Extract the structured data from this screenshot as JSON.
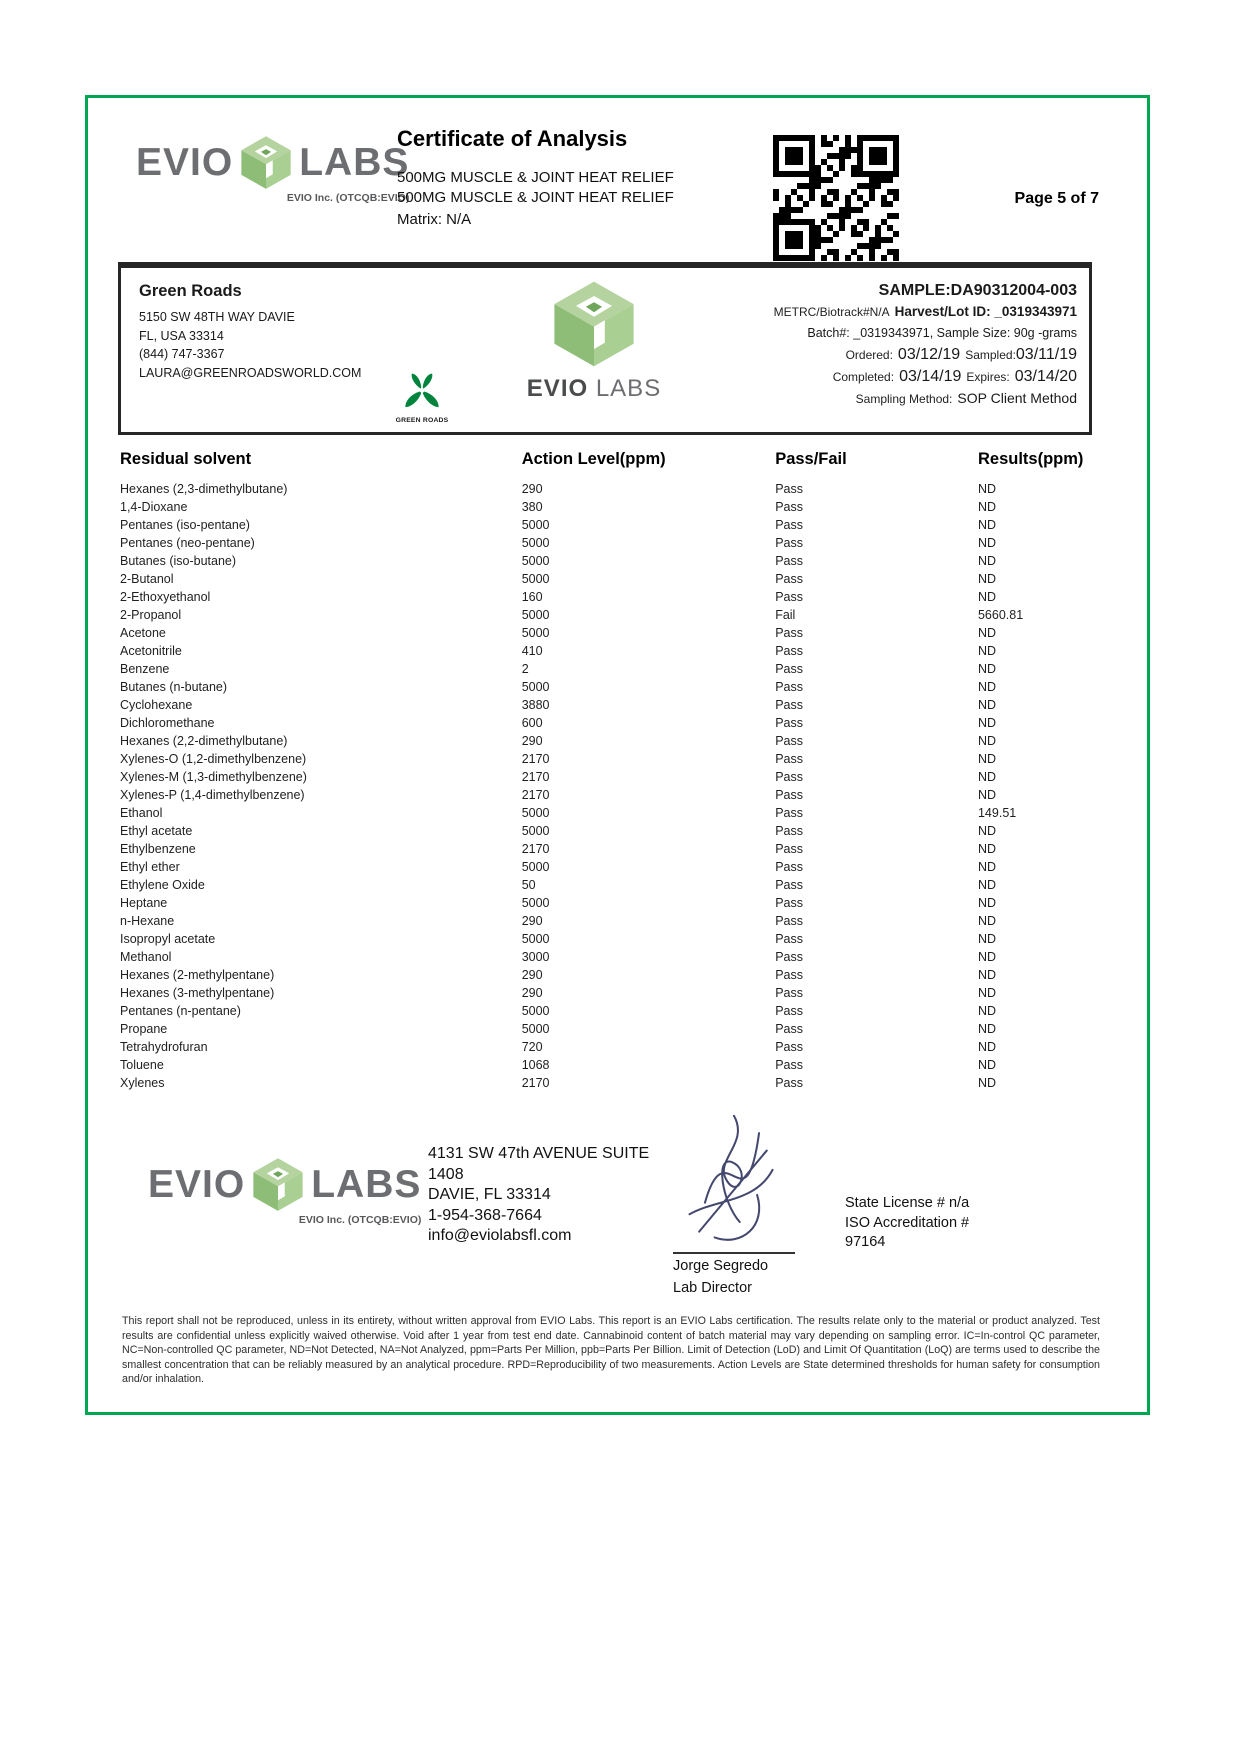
{
  "brand": {
    "evio": "EVIO",
    "labs": "LABS",
    "subtitle": "EVIO Inc. (OTCQB:EVIO)"
  },
  "header": {
    "title": "Certificate of Analysis",
    "product_line1": "500MG MUSCLE & JOINT HEAT RELIEF",
    "product_line2": "500MG MUSCLE & JOINT HEAT RELIEF",
    "matrix": "Matrix: N/A",
    "page_label": "Page 5 of 7"
  },
  "client": {
    "name": "Green Roads",
    "address1": "5150 SW 48TH WAY DAVIE",
    "address2": "FL, USA 33314",
    "phone": "(844) 747-3367",
    "email": "LAURA@GREENROADSWORLD.COM",
    "brand_label": "GREEN ROADS"
  },
  "center_logo": {
    "evio": "EVIO",
    "labs": "LABS"
  },
  "sample": {
    "id_label": "SAMPLE:",
    "id": "DA90312004-003",
    "metrc": "METRC/Biotrack#N/A",
    "harvest": "Harvest/Lot ID: _0319343971",
    "batch": "Batch#: _0319343971, Sample Size: 90g -grams",
    "ordered_label": "Ordered:",
    "ordered_date": "03/12/19",
    "sampled_label": "Sampled:",
    "sampled_date": "03/11/19",
    "completed_label": "Completed:",
    "completed_date": "03/14/19",
    "expires_label": "Expires:",
    "expires_date": "03/14/20",
    "method_label": "Sampling Method:",
    "method": "SOP Client Method"
  },
  "table": {
    "headers": [
      "Residual solvent",
      "Action Level(ppm)",
      "Pass/Fail",
      "Results(ppm)"
    ],
    "rows": [
      [
        "Hexanes (2,3-dimethylbutane)",
        "290",
        "Pass",
        "ND"
      ],
      [
        "1,4-Dioxane",
        "380",
        "Pass",
        "ND"
      ],
      [
        "Pentanes (iso-pentane)",
        "5000",
        "Pass",
        "ND"
      ],
      [
        "Pentanes (neo-pentane)",
        "5000",
        "Pass",
        "ND"
      ],
      [
        "Butanes (iso-butane)",
        "5000",
        "Pass",
        "ND"
      ],
      [
        "2-Butanol",
        "5000",
        "Pass",
        "ND"
      ],
      [
        "2-Ethoxyethanol",
        "160",
        "Pass",
        "ND"
      ],
      [
        "2-Propanol",
        "5000",
        "Fail",
        "5660.81"
      ],
      [
        "Acetone",
        "5000",
        "Pass",
        "ND"
      ],
      [
        "Acetonitrile",
        "410",
        "Pass",
        "ND"
      ],
      [
        "Benzene",
        "2",
        "Pass",
        "ND"
      ],
      [
        "Butanes (n-butane)",
        "5000",
        "Pass",
        "ND"
      ],
      [
        "Cyclohexane",
        "3880",
        "Pass",
        "ND"
      ],
      [
        "Dichloromethane",
        "600",
        "Pass",
        "ND"
      ],
      [
        "Hexanes (2,2-dimethylbutane)",
        "290",
        "Pass",
        "ND"
      ],
      [
        "Xylenes-O (1,2-dimethylbenzene)",
        "2170",
        "Pass",
        "ND"
      ],
      [
        "Xylenes-M (1,3-dimethylbenzene)",
        "2170",
        "Pass",
        "ND"
      ],
      [
        "Xylenes-P (1,4-dimethylbenzene)",
        "2170",
        "Pass",
        "ND"
      ],
      [
        "Ethanol",
        "5000",
        "Pass",
        "149.51"
      ],
      [
        "Ethyl acetate",
        "5000",
        "Pass",
        "ND"
      ],
      [
        "Ethylbenzene",
        "2170",
        "Pass",
        "ND"
      ],
      [
        "Ethyl ether",
        "5000",
        "Pass",
        "ND"
      ],
      [
        "Ethylene Oxide",
        "50",
        "Pass",
        "ND"
      ],
      [
        "Heptane",
        "5000",
        "Pass",
        "ND"
      ],
      [
        "n-Hexane",
        "290",
        "Pass",
        "ND"
      ],
      [
        "Isopropyl acetate",
        "5000",
        "Pass",
        "ND"
      ],
      [
        "Methanol",
        "3000",
        "Pass",
        "ND"
      ],
      [
        "Hexanes (2-methylpentane)",
        "290",
        "Pass",
        "ND"
      ],
      [
        "Hexanes (3-methylpentane)",
        "290",
        "Pass",
        "ND"
      ],
      [
        "Pentanes (n-pentane)",
        "5000",
        "Pass",
        "ND"
      ],
      [
        "Propane",
        "5000",
        "Pass",
        "ND"
      ],
      [
        "Tetrahydrofuran",
        "720",
        "Pass",
        "ND"
      ],
      [
        "Toluene",
        "1068",
        "Pass",
        "ND"
      ],
      [
        "Xylenes",
        "2170",
        "Pass",
        "ND"
      ]
    ]
  },
  "footer": {
    "address1": "4131 SW 47th AVENUE SUITE",
    "address2": "1408",
    "address3": "DAVIE, FL 33314",
    "address4": "1-954-368-7664",
    "address5": "info@eviolabsfl.com",
    "signer_name": "Jorge Segredo",
    "signer_title": "Lab Director",
    "license1": "State License # n/a",
    "license2": "ISO Accreditation #",
    "license3": "97164",
    "disclaimer": "This report shall not be reproduced, unless in its entirety, without written approval from EVIO Labs. This report is an EVIO Labs certification. The results relate only to the material or product analyzed. Test results are confidential unless explicitly waived otherwise. Void after 1 year from test end date. Cannabinoid content of batch material may vary depending on sampling error. IC=In-control QC parameter, NC=Non-controlled QC parameter, ND=Not Detected, NA=Not Analyzed, ppm=Parts Per Million, ppb=Parts Per Billion. Limit of Detection (LoD) and Limit Of Quantitation (LoQ) are terms used to describe the smallest concentration that can be reliably measured by an analytical procedure. RPD=Reproducibility of two measurements. Action Levels are State determined thresholds for human safety for consumption and/or inhalation."
  },
  "colors": {
    "frame_green": "#00a651",
    "logo_gray": "#6d6e71",
    "cube_light": "#b5d39e",
    "cube_mid": "#8dbd77",
    "cube_shade": "#a9cf92",
    "green_roads_green": "#00843d",
    "signature_ink": "#44486e"
  }
}
